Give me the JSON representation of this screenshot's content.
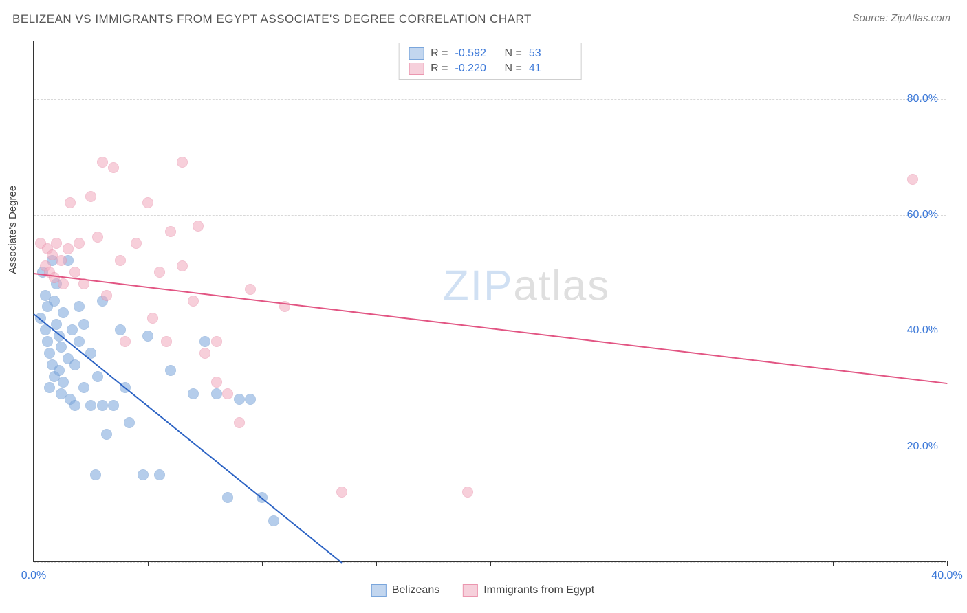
{
  "title": "BELIZEAN VS IMMIGRANTS FROM EGYPT ASSOCIATE'S DEGREE CORRELATION CHART",
  "source": "Source: ZipAtlas.com",
  "ylabel": "Associate's Degree",
  "watermark": {
    "part1": "ZIP",
    "part2": "atlas"
  },
  "chart": {
    "type": "scatter",
    "xlim": [
      0,
      40
    ],
    "ylim": [
      0,
      90
    ],
    "x_tick_positions": [
      0,
      5,
      10,
      15,
      20,
      25,
      30,
      35,
      40
    ],
    "x_tick_labels": {
      "0": "0.0%",
      "40": "40.0%"
    },
    "y_gridlines": [
      0,
      20,
      40,
      60,
      80
    ],
    "y_tick_labels": {
      "20": "20.0%",
      "40": "40.0%",
      "60": "60.0%",
      "80": "80.0%"
    },
    "background_color": "#ffffff",
    "grid_color": "#d8d8d8",
    "axis_color": "#333333",
    "tick_label_color": "#3b78d8",
    "marker_radius": 8,
    "marker_stroke_width": 1.5,
    "marker_fill_opacity": 0.3,
    "line_width": 2
  },
  "series": [
    {
      "name": "Belizeans",
      "color_fill": "#7aa6dc",
      "color_stroke": "#6a97cf",
      "trend_color": "#2c63c4",
      "R": "-0.592",
      "N": "53",
      "trend": {
        "x1": 0,
        "y1": 43,
        "x2": 13.5,
        "y2": 0
      },
      "points": [
        [
          0.3,
          42
        ],
        [
          0.4,
          50
        ],
        [
          0.5,
          46
        ],
        [
          0.5,
          40
        ],
        [
          0.6,
          38
        ],
        [
          0.6,
          44
        ],
        [
          0.7,
          36
        ],
        [
          0.7,
          30
        ],
        [
          0.8,
          34
        ],
        [
          0.8,
          52
        ],
        [
          0.9,
          32
        ],
        [
          0.9,
          45
        ],
        [
          1.0,
          41
        ],
        [
          1.0,
          48
        ],
        [
          1.1,
          39
        ],
        [
          1.1,
          33
        ],
        [
          1.2,
          37
        ],
        [
          1.2,
          29
        ],
        [
          1.3,
          31
        ],
        [
          1.3,
          43
        ],
        [
          1.5,
          35
        ],
        [
          1.5,
          52
        ],
        [
          1.6,
          28
        ],
        [
          1.7,
          40
        ],
        [
          1.8,
          34
        ],
        [
          1.8,
          27
        ],
        [
          2.0,
          38
        ],
        [
          2.0,
          44
        ],
        [
          2.2,
          30
        ],
        [
          2.2,
          41
        ],
        [
          2.5,
          36
        ],
        [
          2.5,
          27
        ],
        [
          2.7,
          15
        ],
        [
          2.8,
          32
        ],
        [
          3.0,
          27
        ],
        [
          3.0,
          45
        ],
        [
          3.2,
          22
        ],
        [
          3.5,
          27
        ],
        [
          3.8,
          40
        ],
        [
          4.0,
          30
        ],
        [
          4.2,
          24
        ],
        [
          4.8,
          15
        ],
        [
          5.0,
          39
        ],
        [
          5.5,
          15
        ],
        [
          6.0,
          33
        ],
        [
          7.0,
          29
        ],
        [
          7.5,
          38
        ],
        [
          8.0,
          29
        ],
        [
          8.5,
          11
        ],
        [
          9.0,
          28
        ],
        [
          9.5,
          28
        ],
        [
          10.5,
          7
        ],
        [
          10.0,
          11
        ]
      ]
    },
    {
      "name": "Immigrants from Egypt",
      "color_fill": "#f2a8bd",
      "color_stroke": "#e890aa",
      "trend_color": "#e25583",
      "R": "-0.220",
      "N": "41",
      "trend": {
        "x1": 0,
        "y1": 50,
        "x2": 40,
        "y2": 31
      },
      "points": [
        [
          0.3,
          55
        ],
        [
          0.5,
          51
        ],
        [
          0.6,
          54
        ],
        [
          0.7,
          50
        ],
        [
          0.8,
          53
        ],
        [
          0.9,
          49
        ],
        [
          1.0,
          55
        ],
        [
          1.2,
          52
        ],
        [
          1.3,
          48
        ],
        [
          1.5,
          54
        ],
        [
          1.6,
          62
        ],
        [
          1.8,
          50
        ],
        [
          2.0,
          55
        ],
        [
          2.2,
          48
        ],
        [
          2.5,
          63
        ],
        [
          2.8,
          56
        ],
        [
          3.0,
          69
        ],
        [
          3.2,
          46
        ],
        [
          3.5,
          68
        ],
        [
          3.8,
          52
        ],
        [
          4.0,
          38
        ],
        [
          4.5,
          55
        ],
        [
          5.0,
          62
        ],
        [
          5.2,
          42
        ],
        [
          5.5,
          50
        ],
        [
          5.8,
          38
        ],
        [
          6.0,
          57
        ],
        [
          6.5,
          51
        ],
        [
          7.0,
          45
        ],
        [
          7.2,
          58
        ],
        [
          7.5,
          36
        ],
        [
          8.0,
          31
        ],
        [
          8.0,
          38
        ],
        [
          8.5,
          29
        ],
        [
          9.0,
          24
        ],
        [
          9.5,
          47
        ],
        [
          11.0,
          44
        ],
        [
          13.5,
          12
        ],
        [
          19.0,
          12
        ],
        [
          38.5,
          66
        ],
        [
          6.5,
          69
        ]
      ]
    }
  ],
  "legend_top": {
    "rows": [
      {
        "swatch": "blue",
        "R_label": "R =",
        "R": "-0.592",
        "N_label": "N =",
        "N": "53"
      },
      {
        "swatch": "pink",
        "R_label": "R =",
        "R": "-0.220",
        "N_label": "N =",
        "N": "41"
      }
    ]
  },
  "legend_bottom": {
    "items": [
      {
        "swatch": "blue",
        "label": "Belizeans"
      },
      {
        "swatch": "pink",
        "label": "Immigrants from Egypt"
      }
    ]
  }
}
